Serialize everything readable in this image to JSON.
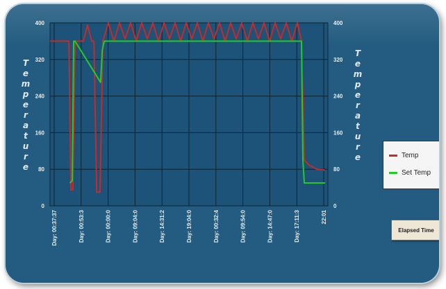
{
  "chart": {
    "left_axis_title": "Temperature",
    "right_axis_title": "Temperature",
    "legend": [
      {
        "label": "Temp",
        "color": "#c62a2a"
      },
      {
        "label": "Set Temp",
        "color": "#22cc22"
      }
    ]
  },
  "controls": {
    "elapsed_time_button": "Elapsed Time"
  },
  "chart_data": {
    "type": "line",
    "ylim": [
      0,
      400
    ],
    "y_ticks_left": [
      "0",
      "80",
      "160",
      "240",
      "320",
      "400"
    ],
    "y_ticks_right": [
      "0",
      "80",
      "160",
      "240",
      "320",
      "400"
    ],
    "x_ticks": [
      "Day: 00:37:37",
      "Day: 00:53:3",
      "Day: 00:00:0",
      "Day: 09:04:0",
      "Day: 14:31:2",
      "Day: 19:04:0",
      "Day: 00:32:4",
      "Day: 09:54:0",
      "Day: 14:47:0",
      "Day: 17:11:3",
      "22:01"
    ],
    "xlim": [
      0,
      10
    ],
    "grid": true,
    "legend_position": "right",
    "series": [
      {
        "name": "Temp",
        "color": "#c62a2a",
        "x": [
          0,
          0.15,
          0.6,
          0.68,
          0.75,
          0.82,
          0.9,
          1.2,
          1.35,
          1.5,
          1.58,
          1.68,
          1.8,
          1.9,
          2.1,
          2.3,
          2.5,
          2.7,
          2.9,
          3.1,
          3.3,
          3.5,
          3.7,
          3.9,
          4.1,
          4.3,
          4.5,
          4.7,
          4.9,
          5.1,
          5.3,
          5.5,
          5.7,
          5.9,
          6.1,
          6.3,
          6.5,
          6.7,
          6.9,
          7.1,
          7.3,
          7.5,
          7.7,
          7.9,
          8.1,
          8.3,
          8.5,
          8.7,
          8.9,
          9.05,
          9.15,
          9.3,
          9.6,
          9.9
        ],
        "y": [
          360,
          360,
          360,
          360,
          35,
          35,
          360,
          360,
          395,
          360,
          360,
          30,
          30,
          360,
          400,
          360,
          400,
          365,
          400,
          360,
          400,
          365,
          400,
          360,
          400,
          365,
          400,
          360,
          400,
          365,
          400,
          360,
          400,
          365,
          400,
          360,
          400,
          365,
          400,
          360,
          400,
          365,
          400,
          360,
          400,
          365,
          400,
          360,
          400,
          360,
          100,
          90,
          80,
          78
        ]
      },
      {
        "name": "Set Temp",
        "color": "#22cc22",
        "x": [
          0.72,
          0.8,
          0.85,
          0.9,
          1.82,
          1.88,
          1.95,
          2.0,
          9.05,
          9.1,
          9.15,
          9.3,
          9.9
        ],
        "y": [
          50,
          55,
          360,
          360,
          270,
          340,
          360,
          360,
          360,
          100,
          50,
          50,
          50
        ]
      }
    ]
  }
}
